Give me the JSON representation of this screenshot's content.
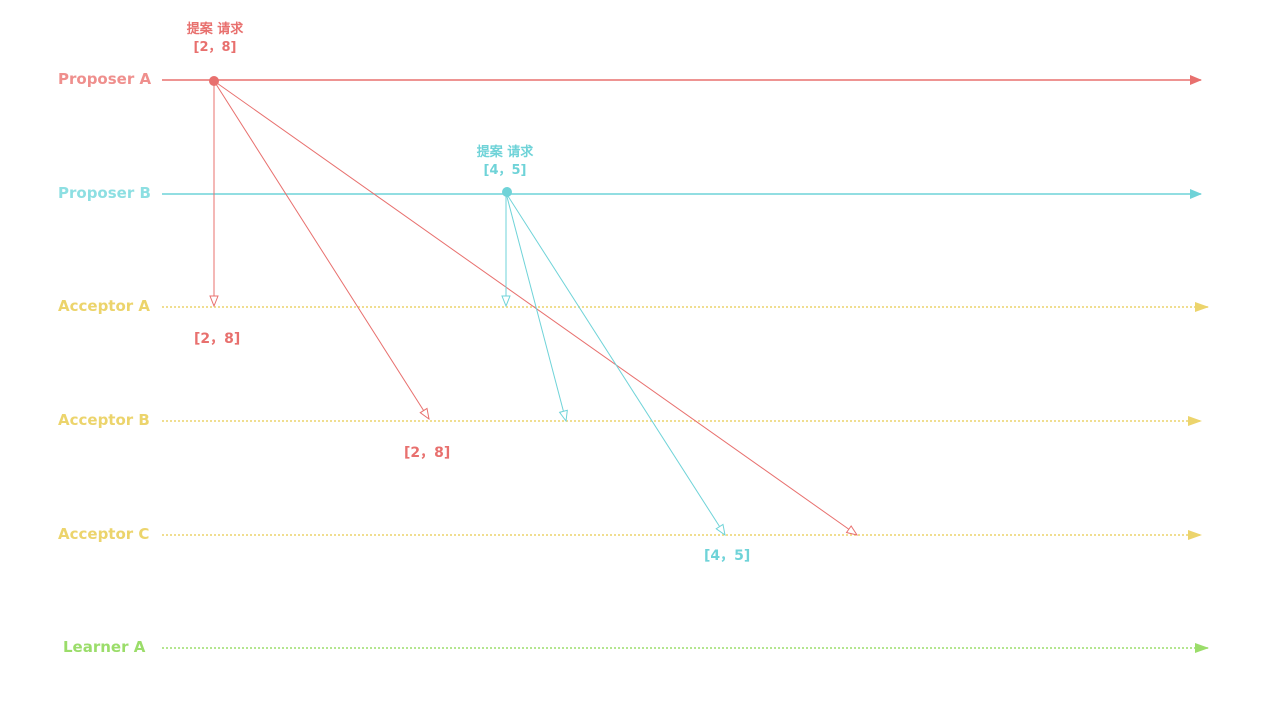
{
  "colors": {
    "proposer_a": "#e8706e",
    "proposer_b": "#6fd3d8",
    "acceptor": "#ecd46c",
    "learner": "#9bdd6a"
  },
  "lanes": {
    "proposer_a": "Proposer A",
    "proposer_b": "Proposer B",
    "acceptor_a": "Acceptor A",
    "acceptor_b": "Acceptor B",
    "acceptor_c": "Acceptor C",
    "learner_a": "Learner A"
  },
  "proposal_a": {
    "title": "提案 请求",
    "value": "[2，8]"
  },
  "proposal_b": {
    "title": "提案 请求",
    "value": "[4，5]"
  },
  "received": {
    "acceptor_a": "[2，8]",
    "acceptor_b": "[2，8]",
    "acceptor_c": "[4，5]"
  }
}
